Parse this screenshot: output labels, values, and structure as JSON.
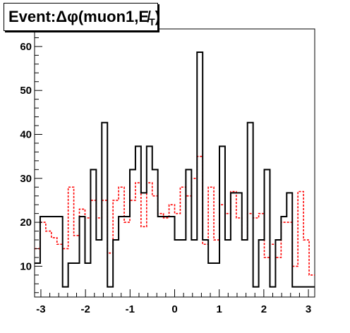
{
  "chart_data": {
    "type": "histogram",
    "title": {
      "prefix": "Event: ",
      "delta": "Δ",
      "phi": "φ",
      "open": "(muon1,",
      "met": "E̸",
      "subscript": "T",
      "close": ")"
    },
    "xlim": [
      -3.1416,
      3.1416
    ],
    "ylim": [
      3,
      64
    ],
    "bin_edges": [
      -3.1416,
      -3.0159,
      -2.8902,
      -2.7646,
      -2.6389,
      -2.5133,
      -2.3876,
      -2.2619,
      -2.1363,
      -2.0106,
      -1.885,
      -1.7593,
      -1.6336,
      -1.508,
      -1.3823,
      -1.2566,
      -1.131,
      -1.0053,
      -0.8796,
      -0.754,
      -0.6283,
      -0.5027,
      -0.377,
      -0.2513,
      -0.1257,
      0.0,
      0.1257,
      0.2513,
      0.377,
      0.5027,
      0.6283,
      0.754,
      0.8796,
      1.0053,
      1.131,
      1.2566,
      1.3823,
      1.508,
      1.6336,
      1.7593,
      1.885,
      2.0106,
      2.1363,
      2.2619,
      2.3876,
      2.5133,
      2.6389,
      2.7646,
      2.8902,
      3.0159,
      3.1416
    ],
    "series": [
      {
        "color": "#000000",
        "dash": "solid",
        "values": [
          10.7,
          21.3,
          21.3,
          21.3,
          21.3,
          5.3,
          10.7,
          10.7,
          21.3,
          10.7,
          32,
          16,
          42.7,
          5.3,
          16,
          21.3,
          21.3,
          32,
          37.3,
          26.7,
          37.3,
          32,
          21.3,
          21.3,
          21.3,
          16,
          16,
          32,
          16,
          58.7,
          16,
          10.7,
          10.7,
          37.3,
          16,
          26.7,
          26.7,
          16,
          42.7,
          5.3,
          16,
          32,
          5.3,
          16,
          21.3,
          26.7,
          5.3,
          5.3,
          5.3,
          5.3
        ]
      },
      {
        "color": "#ff0000",
        "dash": "dashed",
        "values": [
          14,
          20,
          18,
          16.5,
          15,
          14,
          28,
          17,
          23,
          21,
          25,
          21,
          25,
          13,
          25,
          28,
          20,
          25,
          29,
          19,
          29,
          26,
          22,
          21,
          24,
          22,
          28,
          26,
          30,
          35,
          15,
          28,
          16,
          24,
          22,
          27,
          21,
          16,
          22,
          21,
          22,
          12,
          15,
          12,
          20,
          20,
          10,
          27,
          16,
          8
        ]
      }
    ],
    "x_ticks": [
      {
        "value": -3,
        "label": "-3"
      },
      {
        "value": -2,
        "label": "-2"
      },
      {
        "value": -1,
        "label": "-1"
      },
      {
        "value": 0,
        "label": "0"
      },
      {
        "value": 1,
        "label": "1"
      },
      {
        "value": 2,
        "label": "2"
      },
      {
        "value": 3,
        "label": "3"
      }
    ],
    "y_ticks": [
      {
        "value": 10,
        "label": "10"
      },
      {
        "value": 20,
        "label": "20"
      },
      {
        "value": 30,
        "label": "30"
      },
      {
        "value": 40,
        "label": "40"
      },
      {
        "value": 50,
        "label": "50"
      },
      {
        "value": 60,
        "label": "60"
      }
    ],
    "grid": false,
    "legend": "none"
  }
}
